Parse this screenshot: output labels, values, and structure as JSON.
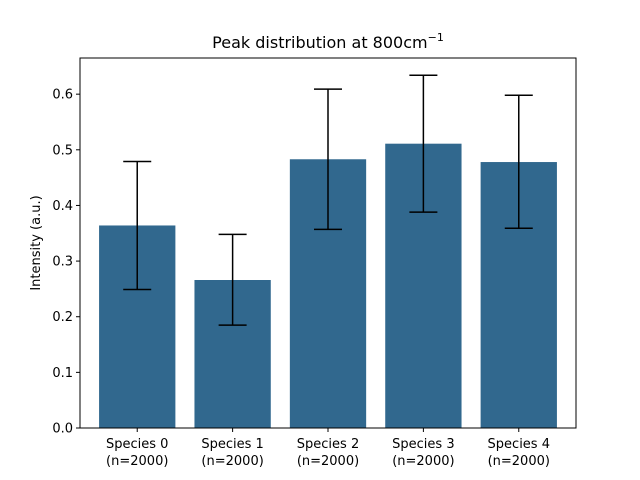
{
  "chart_data": {
    "type": "bar",
    "title": "Peak distribution at 800cm",
    "title_superscript": "−1",
    "xlabel": "",
    "ylabel": "Intensity (a.u.)",
    "ylim": [
      0,
      0.665
    ],
    "yticks": [
      "0.0",
      "0.1",
      "0.2",
      "0.3",
      "0.4",
      "0.5",
      "0.6"
    ],
    "categories": [
      "Species 0",
      "Species 1",
      "Species 2",
      "Species 3",
      "Species 4"
    ],
    "category_sublabels": [
      "(n=2000)",
      "(n=2000)",
      "(n=2000)",
      "(n=2000)",
      "(n=2000)"
    ],
    "values": [
      0.364,
      0.266,
      0.483,
      0.511,
      0.478
    ],
    "error_low": [
      0.249,
      0.185,
      0.357,
      0.388,
      0.359
    ],
    "error_high": [
      0.479,
      0.348,
      0.609,
      0.634,
      0.598
    ],
    "bar_color": "#31688e",
    "error_color": "#000000",
    "grid": false,
    "legend": "none"
  }
}
